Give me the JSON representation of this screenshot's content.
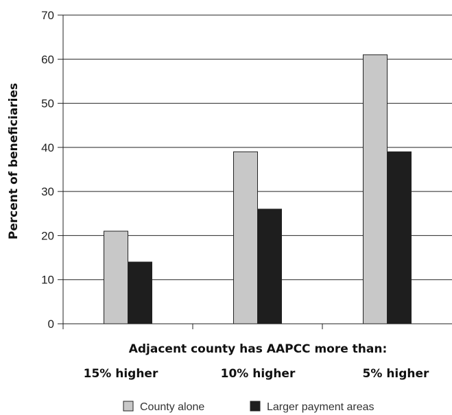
{
  "chart_data": {
    "type": "bar",
    "title": "",
    "xlabel": "Adjacent county has AAPCC more than:",
    "ylabel": "Percent of beneficiaries",
    "categories": [
      "15% higher",
      "10% higher",
      "5% higher"
    ],
    "series": [
      {
        "name": "County alone",
        "values": [
          21,
          39,
          61
        ],
        "color": "#c8c8c8"
      },
      {
        "name": "Larger payment areas",
        "values": [
          14,
          26,
          39
        ],
        "color": "#1e1e1e"
      }
    ],
    "ylim": [
      0,
      70
    ],
    "yticks": [
      0,
      10,
      20,
      30,
      40,
      50,
      60,
      70
    ],
    "grid": true,
    "legend_position": "bottom"
  }
}
